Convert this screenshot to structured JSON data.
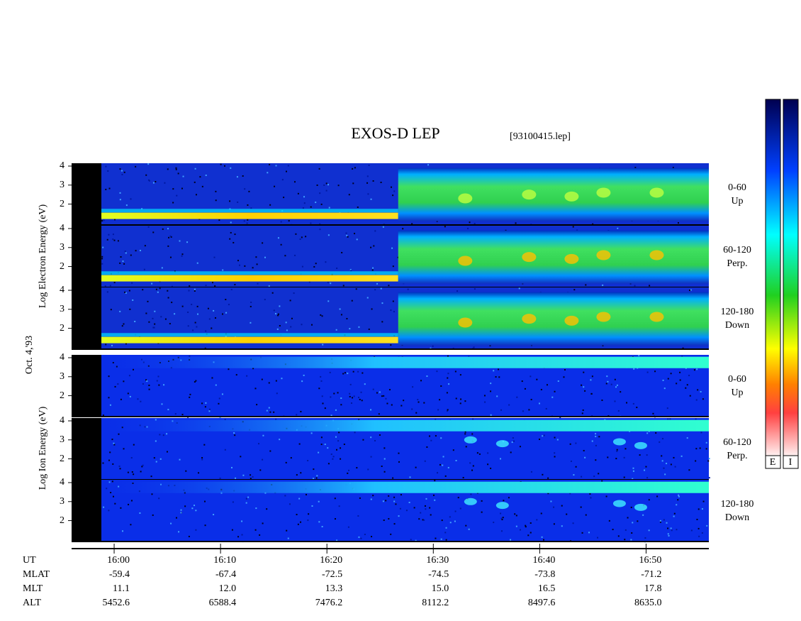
{
  "chart_data": {
    "type": "spectrogram",
    "title": "EXOS-D LEP",
    "file_label": "[93100415.lep]",
    "date_label": "Oct. 4,'93",
    "groups": [
      {
        "y_label": "Log Electron Energy (eV)",
        "panels": [
          {
            "angle": "0-60",
            "direction": "Up"
          },
          {
            "angle": "60-120",
            "direction": "Perp."
          },
          {
            "angle": "120-180",
            "direction": "Down"
          }
        ]
      },
      {
        "y_label": "Log Ion Energy (eV)",
        "panels": [
          {
            "angle": "0-60",
            "direction": "Up"
          },
          {
            "angle": "60-120",
            "direction": "Perp."
          },
          {
            "angle": "120-180",
            "direction": "Down"
          }
        ]
      }
    ],
    "ylim": [
      0.9,
      4.15
    ],
    "yticks": [
      2,
      3,
      4
    ],
    "xlim": [
      956,
      1015.9
    ],
    "xticks": [
      {
        "value": 960,
        "label": "16:00"
      },
      {
        "value": 970,
        "label": "16:10"
      },
      {
        "value": 980,
        "label": "16:20"
      },
      {
        "value": 990,
        "label": "16:30"
      },
      {
        "value": 1000,
        "label": "16:40"
      },
      {
        "value": 1010,
        "label": "16:50"
      }
    ],
    "colorbar_labels": [
      "E",
      "I"
    ],
    "ephemeris": {
      "row_labels": [
        "UT",
        "MLAT",
        "MLT",
        "ALT"
      ],
      "rows": [
        [
          "-59.4",
          "-67.4",
          "-72.5",
          "-74.5",
          "-73.8",
          "-71.2"
        ],
        [
          "11.1",
          "12.0",
          "13.3",
          "15.0",
          "16.5",
          "17.8"
        ],
        [
          "5452.6",
          "6588.4",
          "7476.2",
          "8112.2",
          "8497.6",
          "8635.0"
        ]
      ]
    }
  }
}
